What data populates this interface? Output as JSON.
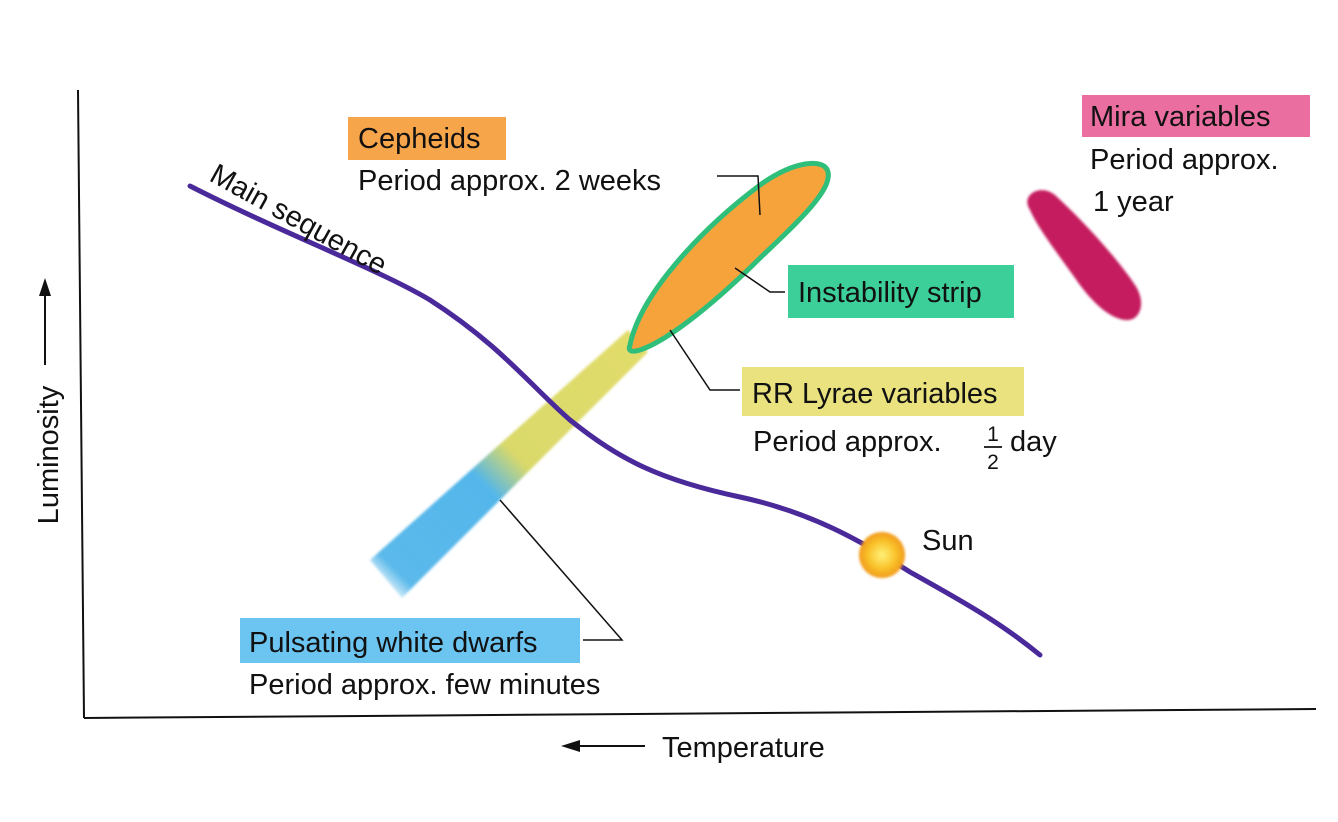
{
  "axes": {
    "x_label": "Temperature",
    "y_label": "Luminosity"
  },
  "curves": {
    "main_sequence": "Main sequence"
  },
  "regions": {
    "cepheids": {
      "name": "Cepheids",
      "period": "Period approx. 2 weeks"
    },
    "instability_strip": {
      "name": "Instability strip"
    },
    "rr_lyrae": {
      "name": "RR Lyrae variables",
      "period_prefix": "Period approx.",
      "fraction_num": "1",
      "fraction_den": "2",
      "period_suffix": "day"
    },
    "white_dwarfs": {
      "name": "Pulsating white dwarfs",
      "period": "Period approx. few minutes"
    },
    "mira": {
      "name": "Mira variables",
      "period_line1": "Period approx.",
      "period_line2": "1 year"
    },
    "sun": {
      "name": "Sun"
    }
  },
  "colors": {
    "main_sequence": "#4a2a9a",
    "cepheid_fill": "#f7a33c",
    "strip_outline": "#2fbf7a",
    "rr_lyrae": "#e2dc6a",
    "white_dwarf": "#53b6ea",
    "mira": "#c51b5f",
    "sun": "#f5c02a",
    "tag_cepheids": "#f7a54a",
    "tag_instability": "#3dcf9a",
    "tag_rr_lyrae": "#e9e27e",
    "tag_white_dwarfs": "#6cc4f0",
    "tag_mira": "#ea6fa0"
  }
}
